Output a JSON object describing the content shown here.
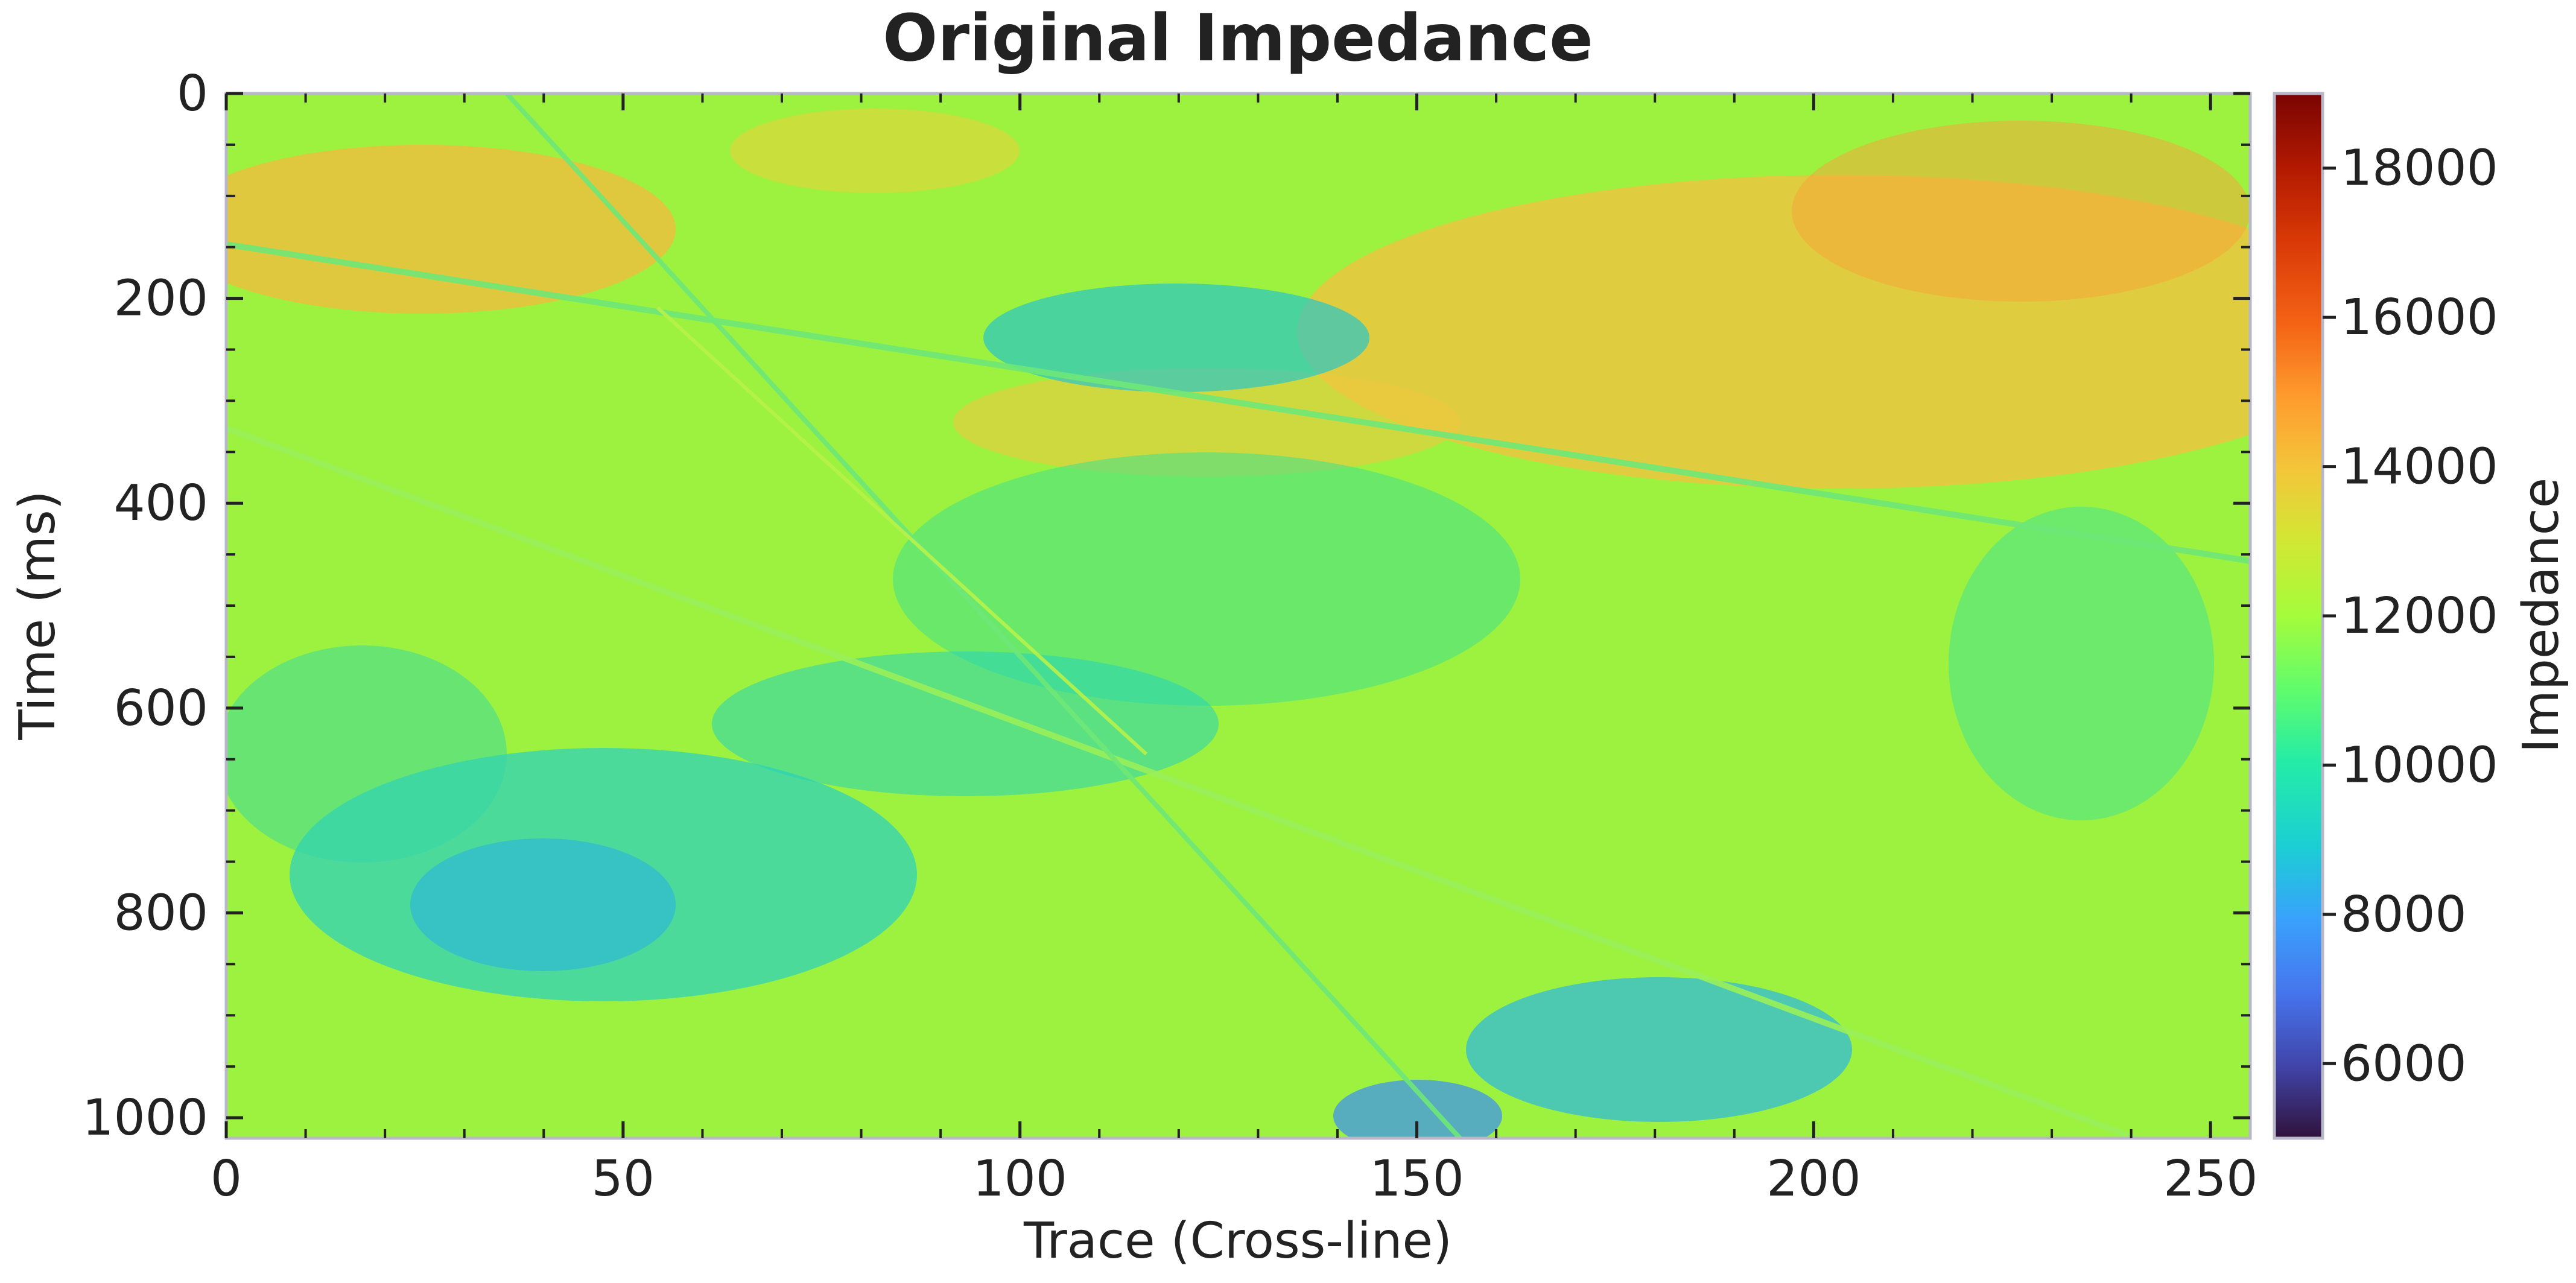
{
  "chart_data": {
    "type": "heatmap",
    "title": "Original Impedance",
    "xlabel": "Trace (Cross-line)",
    "ylabel": "Time (ms)",
    "xlim": [
      0,
      255
    ],
    "ylim": [
      1020,
      0
    ],
    "x_ticks": [
      0,
      50,
      100,
      150,
      200,
      250
    ],
    "y_ticks": [
      0,
      200,
      400,
      600,
      800,
      1000
    ],
    "colorbar": {
      "label": "Impedance",
      "range": [
        5000,
        19000
      ],
      "ticks": [
        6000,
        8000,
        10000,
        12000,
        14000,
        16000,
        18000
      ],
      "colormap": "turbo"
    },
    "grid": false,
    "description_values": {
      "background_impedance_range": [
        9000,
        15500
      ],
      "dominant_value": 11500
    }
  }
}
